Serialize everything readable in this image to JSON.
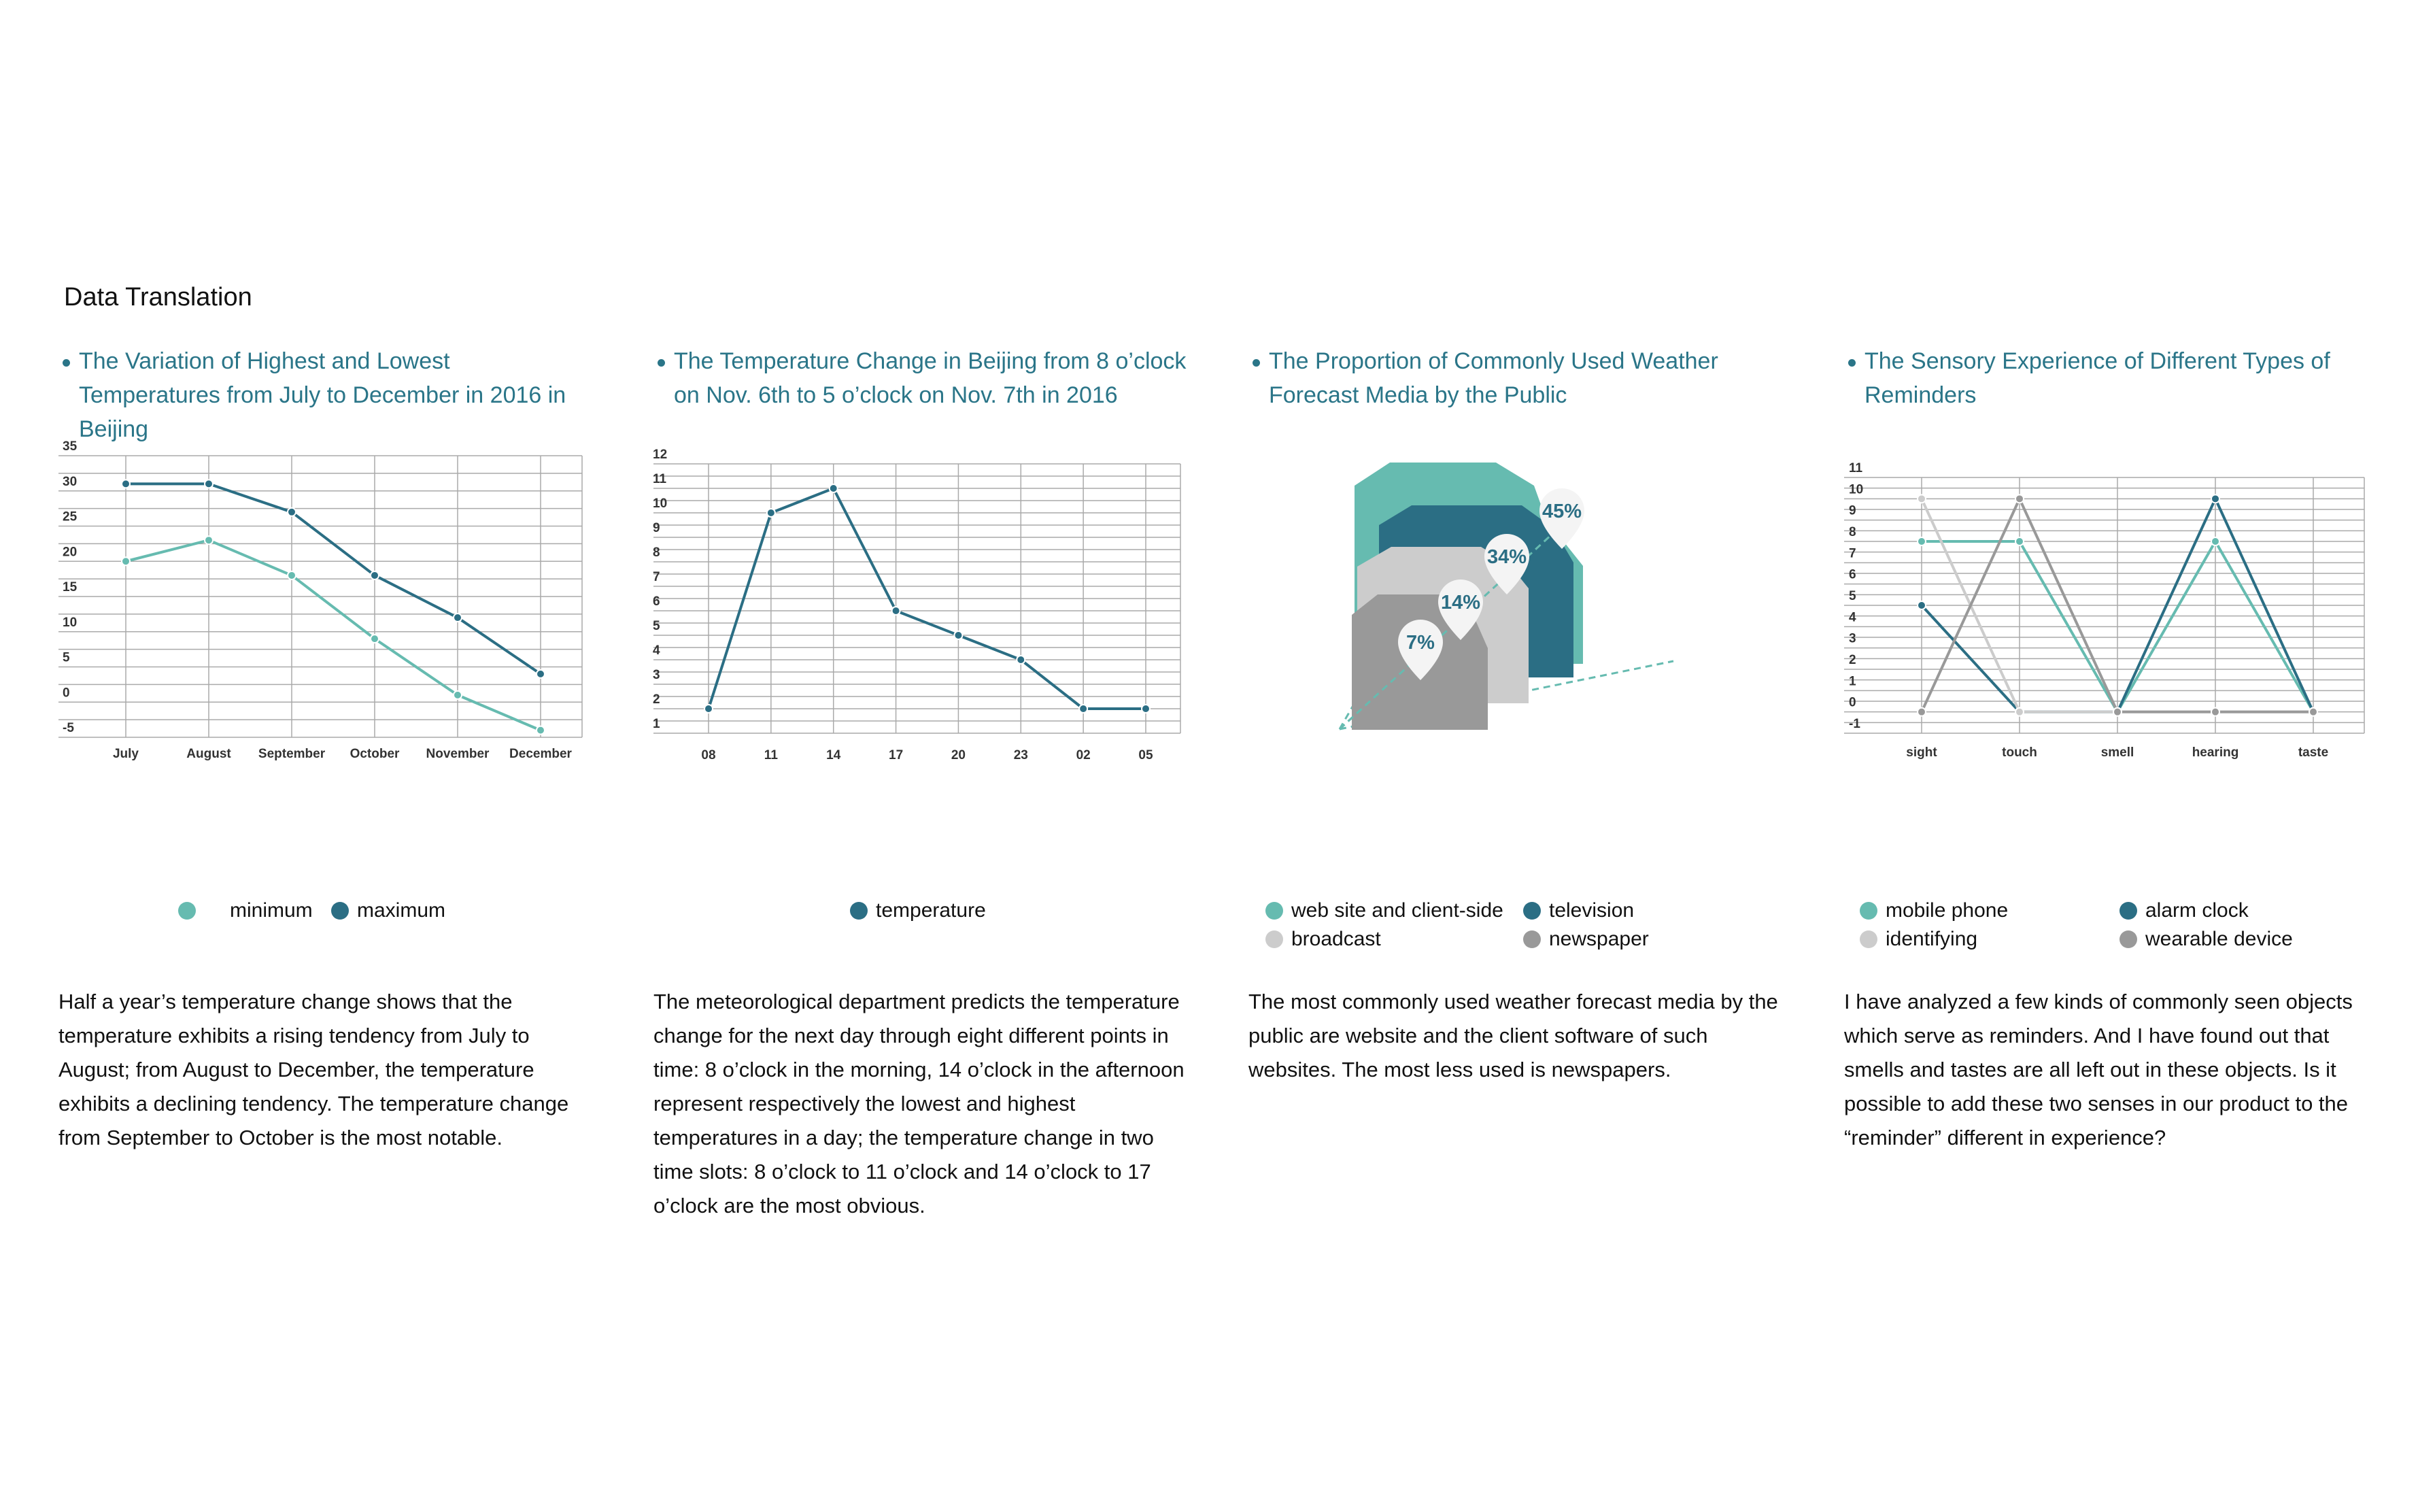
{
  "page": {
    "title": "Data Translation"
  },
  "colors": {
    "teal_light": "#66bbb0",
    "teal_dark": "#2b6e84",
    "gray_light": "#cccccc",
    "gray_mid": "#999999",
    "grid": "#aaaaaa",
    "title": "#2a7588"
  },
  "panels": [
    {
      "title": "The Variation of Highest and Lowest Temperatures from July to December in 2016 in Beijing",
      "description": "Half a year’s temperature change shows that the temperature exhibits a rising tendency from July to August; from August to December, the temperature exhibits a declining tendency. The temperature change from September to October is the most notable.",
      "legend": [
        {
          "label": "minimum",
          "color": "#66bbb0"
        },
        {
          "label": "maximum",
          "color": "#2b6e84"
        }
      ]
    },
    {
      "title": "The Temperature Change in Beijing from 8 o’clock on Nov. 6th to 5 o’clock on Nov. 7th in 2016",
      "description": "The meteorological department predicts the temperature change for the next day through eight different points in time: 8 o’clock in the morning, 14 o’clock in the afternoon represent respectively the lowest and highest temperatures in a day; the temperature change in two time slots: 8 o’clock to 11 o’clock and 14 o’clock to 17 o’clock are the most obvious.",
      "legend": [
        {
          "label": "temperature",
          "color": "#2b6e84"
        }
      ]
    },
    {
      "title": "The Proportion of Commonly Used Weather Forecast Media by the Public",
      "description": "The most commonly used weather forecast media by the public are website and the client software of such websites. The most less used is newspapers.",
      "legend": [
        {
          "label": "web site and client-side",
          "color": "#66bbb0"
        },
        {
          "label": "television",
          "color": "#2b6e84"
        },
        {
          "label": "broadcast",
          "color": "#cccccc"
        },
        {
          "label": "newspaper",
          "color": "#999999"
        }
      ]
    },
    {
      "title": "The Sensory Experience of Different Types of Reminders",
      "description": "I have analyzed a few kinds of commonly seen objects which serve as reminders. And I have found out that smells and tastes are all left out in these objects. Is it possible to add these two senses in our product to the “reminder” different in experience?",
      "legend": [
        {
          "label": "mobile phone",
          "color": "#66bbb0"
        },
        {
          "label": "alarm clock",
          "color": "#2b6e84"
        },
        {
          "label": "identifying",
          "color": "#cccccc"
        },
        {
          "label": "wearable device",
          "color": "#999999"
        }
      ]
    }
  ],
  "chart_data": [
    {
      "type": "line",
      "title": "The Variation of Highest and Lowest Temperatures from July to December in 2016 in Beijing",
      "categories": [
        "July",
        "August",
        "September",
        "October",
        "November",
        "December"
      ],
      "yticks": [
        -5,
        0,
        5,
        10,
        15,
        20,
        25,
        30,
        35
      ],
      "ylim": [
        -5,
        35
      ],
      "grid": true,
      "legend_position": "bottom",
      "series": [
        {
          "name": "minimum",
          "color": "#66bbb0",
          "values": [
            20,
            23,
            18,
            9,
            1,
            -4
          ]
        },
        {
          "name": "maximum",
          "color": "#2b6e84",
          "values": [
            31,
            31,
            27,
            18,
            12,
            4
          ]
        }
      ]
    },
    {
      "type": "line",
      "title": "The Temperature Change in Beijing from 8 o’clock on Nov. 6th to 5 o’clock on Nov. 7th in 2016",
      "categories": [
        "08",
        "11",
        "14",
        "17",
        "20",
        "23",
        "02",
        "05"
      ],
      "yticks": [
        1,
        2,
        3,
        4,
        5,
        6,
        7,
        8,
        9,
        10,
        11,
        12
      ],
      "ylim": [
        1,
        12
      ],
      "grid": true,
      "legend_position": "bottom",
      "series": [
        {
          "name": "temperature",
          "color": "#2b6e84",
          "values": [
            2,
            10,
            11,
            6,
            5,
            4,
            2,
            2
          ]
        }
      ]
    },
    {
      "type": "pie",
      "title": "The Proportion of Commonly Used Weather Forecast Media by the Public",
      "legend_position": "bottom",
      "slices": [
        {
          "name": "web site and client-side",
          "value": 45,
          "label": "45%",
          "color": "#66bbb0"
        },
        {
          "name": "television",
          "value": 34,
          "label": "34%",
          "color": "#2b6e84"
        },
        {
          "name": "broadcast",
          "value": 14,
          "label": "14%",
          "color": "#cccccc"
        },
        {
          "name": "newspaper",
          "value": 7,
          "label": "7%",
          "color": "#999999"
        }
      ]
    },
    {
      "type": "line",
      "title": "The Sensory Experience of Different Types of Reminders",
      "categories": [
        "sight",
        "touch",
        "smell",
        "hearing",
        "taste"
      ],
      "yticks": [
        -1,
        0,
        1,
        2,
        3,
        4,
        5,
        6,
        7,
        8,
        9,
        10,
        11
      ],
      "ylim": [
        -1,
        11
      ],
      "grid": true,
      "legend_position": "bottom",
      "series": [
        {
          "name": "mobile phone",
          "color": "#66bbb0",
          "values": [
            8,
            8,
            0,
            8,
            0
          ]
        },
        {
          "name": "alarm clock",
          "color": "#2b6e84",
          "values": [
            5,
            0,
            0,
            10,
            0
          ]
        },
        {
          "name": "identifying",
          "color": "#cccccc",
          "values": [
            10,
            0,
            0,
            0,
            0
          ]
        },
        {
          "name": "wearable device",
          "color": "#999999",
          "values": [
            0,
            10,
            0,
            0,
            0
          ]
        }
      ]
    }
  ]
}
